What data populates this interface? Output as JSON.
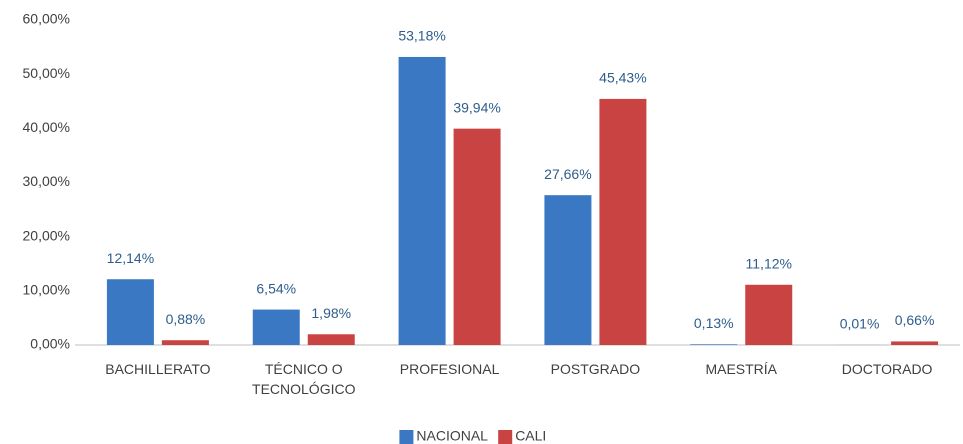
{
  "chart_data": {
    "type": "bar",
    "categories": [
      "BACHILLERATO",
      "TÉCNICO O TECNOLÓGICO",
      "PROFESIONAL",
      "POSTGRADO",
      "MAESTRÍA",
      "DOCTORADO"
    ],
    "series": [
      {
        "name": "NACIONAL",
        "color": "#3b78c3",
        "values": [
          12.14,
          6.54,
          53.18,
          27.66,
          0.13,
          0.01
        ],
        "value_labels": [
          "12,14%",
          "6,54%",
          "53,18%",
          "27,66%",
          "0,13%",
          "0,01%"
        ]
      },
      {
        "name": "CALI",
        "color": "#c94343",
        "values": [
          0.88,
          1.98,
          39.94,
          45.43,
          11.12,
          0.66
        ],
        "value_labels": [
          "0,88%",
          "1,98%",
          "39,94%",
          "45,43%",
          "11,12%",
          "0,66%"
        ]
      }
    ],
    "ylim": [
      0,
      60
    ],
    "yticks": [
      {
        "value": 0,
        "label": "0,00%"
      },
      {
        "value": 10,
        "label": "10,00%"
      },
      {
        "value": 20,
        "label": "20,00%"
      },
      {
        "value": 30,
        "label": "30,00%"
      },
      {
        "value": 40,
        "label": "40,00%"
      },
      {
        "value": 50,
        "label": "50,00%"
      },
      {
        "value": 60,
        "label": "60,00%"
      }
    ],
    "grid": false,
    "legend": "bottom"
  }
}
